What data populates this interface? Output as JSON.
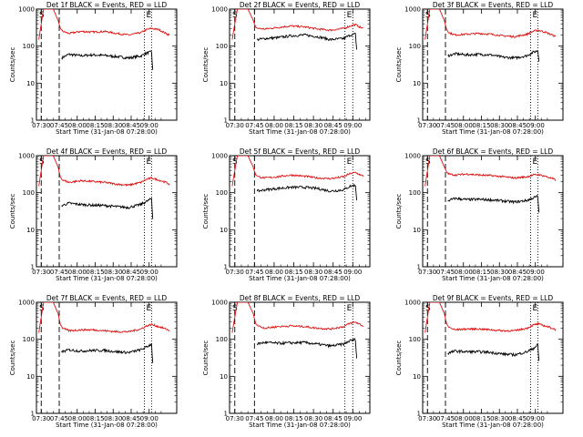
{
  "figure": {
    "colors": {
      "events": "#000000",
      "lld": "#e01010",
      "axes": "#000000",
      "background": "#ffffff"
    },
    "common": {
      "ylabel": "Counts/sec",
      "xlabel": "Start Time (31-Jan-08 07:28:00)",
      "yticks": [
        "1",
        "10",
        "100",
        "1000"
      ],
      "ylim": [
        1,
        1000
      ],
      "scale": "log",
      "markers": [
        "S",
        "E"
      ]
    }
  },
  "chart_data": [
    {
      "type": "line",
      "title": "Det 1f BLACK = Events, RED = LLD",
      "xlabel": "Start Time (31-Jan-08 07:28:00)",
      "ylabel": "Counts/sec",
      "xticks": [
        "07:30",
        "07:45",
        "08:00",
        "08:15",
        "08:30",
        "08:45",
        "09:00"
      ],
      "xlim_min": [
        -2,
        115
      ],
      "ylim": [
        1,
        1000
      ],
      "yscale": "log",
      "vlines_dashed_min": [
        2,
        17
      ],
      "vlines_dotted_min": [
        88,
        94
      ],
      "series": [
        {
          "name": "BLACK = Events",
          "x": [
            19,
            25,
            35,
            45,
            55,
            65,
            75,
            85,
            90,
            94,
            95
          ],
          "values": [
            48,
            60,
            55,
            58,
            56,
            52,
            48,
            54,
            65,
            70,
            22
          ]
        },
        {
          "name": "RED = LLD",
          "x": [
            0,
            2,
            4,
            8,
            12,
            16,
            18,
            20,
            25,
            35,
            45,
            55,
            65,
            75,
            85,
            90,
            94,
            100,
            106,
            109
          ],
          "values": [
            150,
            400,
            1000,
            1000,
            1000,
            500,
            300,
            250,
            220,
            250,
            240,
            250,
            220,
            200,
            230,
            280,
            300,
            280,
            220,
            200
          ]
        }
      ]
    },
    {
      "type": "line",
      "title": "Det 2f BLACK = Events, RED = LLD",
      "xlabel": "Start Time (31-Jan-08 07:28:00)",
      "ylabel": "Counts/sec",
      "xticks": [
        "07:30",
        "07:45",
        "08:00",
        "08:15",
        "08:30",
        "08:45",
        "09:00"
      ],
      "xlim_min": [
        -2,
        105
      ],
      "ylim": [
        1,
        1000
      ],
      "yscale": "log",
      "vlines_dashed_min": [
        2,
        17
      ],
      "vlines_dotted_min": [
        86,
        92
      ],
      "series": [
        {
          "name": "BLACK = Events",
          "x": [
            19,
            25,
            35,
            45,
            55,
            65,
            75,
            85,
            90,
            94,
            95
          ],
          "values": [
            150,
            160,
            170,
            190,
            200,
            180,
            150,
            160,
            200,
            210,
            80
          ]
        },
        {
          "name": "RED = LLD",
          "x": [
            0,
            2,
            4,
            8,
            12,
            16,
            18,
            20,
            25,
            35,
            45,
            55,
            65,
            75,
            85,
            90,
            94,
            98,
            100
          ],
          "values": [
            150,
            400,
            1000,
            1000,
            1000,
            500,
            320,
            300,
            290,
            320,
            350,
            330,
            290,
            270,
            300,
            350,
            380,
            320,
            300
          ]
        }
      ]
    },
    {
      "type": "line",
      "title": "Det 3f BLACK = Events, RED = LLD",
      "xlabel": "Start Time (31-Jan-08 07:28:00)",
      "ylabel": "Counts/sec",
      "xticks": [
        "07:30",
        "07:45",
        "08:00",
        "08:15",
        "08:30",
        "08:45",
        "09:00"
      ],
      "xlim_min": [
        -2,
        115
      ],
      "ylim": [
        1,
        1000
      ],
      "yscale": "log",
      "vlines_dashed_min": [
        2,
        17
      ],
      "vlines_dotted_min": [
        88,
        94
      ],
      "series": [
        {
          "name": "BLACK = Events",
          "x": [
            19,
            25,
            35,
            45,
            55,
            65,
            75,
            85,
            90,
            94,
            95
          ],
          "values": [
            55,
            62,
            58,
            60,
            58,
            50,
            48,
            55,
            68,
            75,
            40
          ]
        },
        {
          "name": "RED = LLD",
          "x": [
            0,
            2,
            4,
            8,
            12,
            16,
            18,
            20,
            25,
            35,
            45,
            55,
            65,
            75,
            85,
            90,
            94,
            100,
            106,
            109
          ],
          "values": [
            150,
            400,
            1000,
            1000,
            1000,
            500,
            280,
            230,
            200,
            210,
            220,
            210,
            190,
            180,
            210,
            250,
            270,
            240,
            200,
            180
          ]
        }
      ]
    },
    {
      "type": "line",
      "title": "Det 4f BLACK = Events, RED = LLD",
      "xlabel": "Start Time (31-Jan-08 07:28:00)",
      "ylabel": "Counts/sec",
      "xticks": [
        "07:30",
        "07:45",
        "08:00",
        "08:15",
        "08:30",
        "08:45",
        "09:00"
      ],
      "xlim_min": [
        -2,
        115
      ],
      "ylim": [
        1,
        1000
      ],
      "yscale": "log",
      "vlines_dashed_min": [
        2,
        17
      ],
      "vlines_dotted_min": [
        88,
        94
      ],
      "series": [
        {
          "name": "BLACK = Events",
          "x": [
            19,
            25,
            35,
            45,
            55,
            65,
            75,
            85,
            90,
            94,
            95
          ],
          "values": [
            45,
            52,
            48,
            46,
            45,
            42,
            40,
            48,
            58,
            70,
            20
          ]
        },
        {
          "name": "RED = LLD",
          "x": [
            0,
            2,
            4,
            8,
            12,
            16,
            18,
            20,
            25,
            35,
            45,
            55,
            65,
            75,
            85,
            90,
            94,
            100,
            106,
            109
          ],
          "values": [
            150,
            400,
            1000,
            1000,
            1000,
            500,
            260,
            220,
            190,
            210,
            200,
            190,
            170,
            160,
            190,
            230,
            250,
            220,
            190,
            170
          ]
        }
      ]
    },
    {
      "type": "line",
      "title": "Det 5f BLACK = Events, RED = LLD",
      "xlabel": "Start Time (31-Jan-08 07:28:00)",
      "ylabel": "Counts/sec",
      "xticks": [
        "07:30",
        "07:45",
        "08:00",
        "08:15",
        "08:30",
        "08:45",
        "09:00"
      ],
      "xlim_min": [
        -2,
        105
      ],
      "ylim": [
        1,
        1000
      ],
      "yscale": "log",
      "vlines_dashed_min": [
        2,
        17
      ],
      "vlines_dotted_min": [
        86,
        92
      ],
      "series": [
        {
          "name": "BLACK = Events",
          "x": [
            19,
            25,
            35,
            45,
            55,
            65,
            75,
            85,
            90,
            94,
            95
          ],
          "values": [
            110,
            120,
            130,
            140,
            140,
            130,
            110,
            120,
            150,
            160,
            65
          ]
        },
        {
          "name": "RED = LLD",
          "x": [
            0,
            2,
            4,
            8,
            12,
            16,
            18,
            20,
            25,
            35,
            45,
            55,
            65,
            75,
            85,
            90,
            94,
            98,
            100
          ],
          "values": [
            150,
            400,
            1000,
            1000,
            1000,
            500,
            300,
            270,
            250,
            270,
            300,
            280,
            250,
            240,
            270,
            330,
            350,
            300,
            280
          ]
        }
      ]
    },
    {
      "type": "line",
      "title": "Det 6f BLACK = Events, RED = LLD",
      "xlabel": "Start Time (31-Jan-08 07:28:00)",
      "ylabel": "Counts/sec",
      "xticks": [
        "07:30",
        "07:45",
        "08:00",
        "08:15",
        "08:30",
        "08:45",
        "09:00"
      ],
      "xlim_min": [
        -2,
        115
      ],
      "ylim": [
        1,
        1000
      ],
      "yscale": "log",
      "vlines_dashed_min": [
        2,
        17
      ],
      "vlines_dotted_min": [
        88,
        94
      ],
      "series": [
        {
          "name": "BLACK = Events",
          "x": [
            19,
            25,
            35,
            45,
            55,
            65,
            75,
            85,
            90,
            94,
            95
          ],
          "values": [
            60,
            70,
            65,
            66,
            64,
            60,
            56,
            62,
            72,
            80,
            28
          ]
        },
        {
          "name": "RED = LLD",
          "x": [
            0,
            2,
            4,
            8,
            12,
            16,
            18,
            20,
            25,
            35,
            45,
            55,
            65,
            75,
            85,
            90,
            94,
            100,
            106,
            109
          ],
          "values": [
            150,
            400,
            1000,
            1000,
            1000,
            500,
            360,
            320,
            300,
            320,
            300,
            290,
            270,
            250,
            270,
            300,
            310,
            280,
            240,
            220
          ]
        }
      ]
    },
    {
      "type": "line",
      "title": "Det 7f BLACK = Events, RED = LLD",
      "xlabel": "Start Time (31-Jan-08 07:28:00)",
      "ylabel": "Counts/sec",
      "xticks": [
        "07:30",
        "07:45",
        "08:00",
        "08:15",
        "08:30",
        "08:45",
        "09:00"
      ],
      "xlim_min": [
        -2,
        115
      ],
      "ylim": [
        1,
        1000
      ],
      "yscale": "log",
      "vlines_dashed_min": [
        2,
        17
      ],
      "vlines_dotted_min": [
        88,
        94
      ],
      "series": [
        {
          "name": "BLACK = Events",
          "x": [
            19,
            25,
            35,
            45,
            55,
            65,
            75,
            85,
            90,
            94,
            95
          ],
          "values": [
            45,
            52,
            48,
            50,
            50,
            46,
            44,
            52,
            62,
            75,
            22
          ]
        },
        {
          "name": "RED = LLD",
          "x": [
            0,
            2,
            4,
            8,
            12,
            16,
            18,
            20,
            25,
            35,
            45,
            55,
            65,
            75,
            85,
            90,
            94,
            100,
            106,
            109
          ],
          "values": [
            150,
            400,
            1000,
            1000,
            1000,
            500,
            250,
            200,
            170,
            180,
            180,
            170,
            160,
            160,
            190,
            230,
            250,
            220,
            190,
            170
          ]
        }
      ]
    },
    {
      "type": "line",
      "title": "Det 8f BLACK = Events, RED = LLD",
      "xlabel": "Start Time (31-Jan-08 07:28:00)",
      "ylabel": "Counts/sec",
      "xticks": [
        "07:30",
        "07:45",
        "08:00",
        "08:15",
        "08:30",
        "08:45",
        "09:00"
      ],
      "xlim_min": [
        -2,
        105
      ],
      "ylim": [
        1,
        1000
      ],
      "yscale": "log",
      "vlines_dashed_min": [
        2,
        17
      ],
      "vlines_dotted_min": [
        86,
        92
      ],
      "series": [
        {
          "name": "BLACK = Events",
          "x": [
            19,
            25,
            35,
            45,
            55,
            65,
            75,
            85,
            90,
            94,
            95
          ],
          "values": [
            75,
            82,
            78,
            80,
            82,
            74,
            66,
            74,
            92,
            98,
            30
          ]
        },
        {
          "name": "RED = LLD",
          "x": [
            0,
            2,
            4,
            8,
            12,
            16,
            18,
            20,
            25,
            35,
            45,
            55,
            65,
            75,
            85,
            90,
            94,
            98,
            100
          ],
          "values": [
            150,
            400,
            1000,
            1000,
            1000,
            500,
            260,
            230,
            200,
            220,
            230,
            220,
            200,
            190,
            220,
            270,
            290,
            250,
            220
          ]
        }
      ]
    },
    {
      "type": "line",
      "title": "Det 9f BLACK = Events, RED = LLD",
      "xlabel": "Start Time (31-Jan-08 07:28:00)",
      "ylabel": "Counts/sec",
      "xticks": [
        "07:30",
        "07:45",
        "08:00",
        "08:15",
        "08:30",
        "08:45",
        "09:00"
      ],
      "xlim_min": [
        -2,
        115
      ],
      "ylim": [
        1,
        1000
      ],
      "yscale": "log",
      "vlines_dashed_min": [
        2,
        17
      ],
      "vlines_dotted_min": [
        88,
        94
      ],
      "series": [
        {
          "name": "BLACK = Events",
          "x": [
            19,
            25,
            35,
            45,
            55,
            65,
            75,
            85,
            90,
            94,
            95
          ],
          "values": [
            42,
            48,
            46,
            46,
            44,
            40,
            38,
            46,
            56,
            70,
            25
          ]
        },
        {
          "name": "RED = LLD",
          "x": [
            0,
            2,
            4,
            8,
            12,
            16,
            18,
            20,
            25,
            35,
            45,
            55,
            65,
            75,
            85,
            90,
            94,
            100,
            106,
            109
          ],
          "values": [
            150,
            400,
            1000,
            1000,
            1000,
            500,
            260,
            210,
            180,
            190,
            190,
            180,
            170,
            170,
            200,
            240,
            260,
            230,
            200,
            180
          ]
        }
      ]
    }
  ]
}
